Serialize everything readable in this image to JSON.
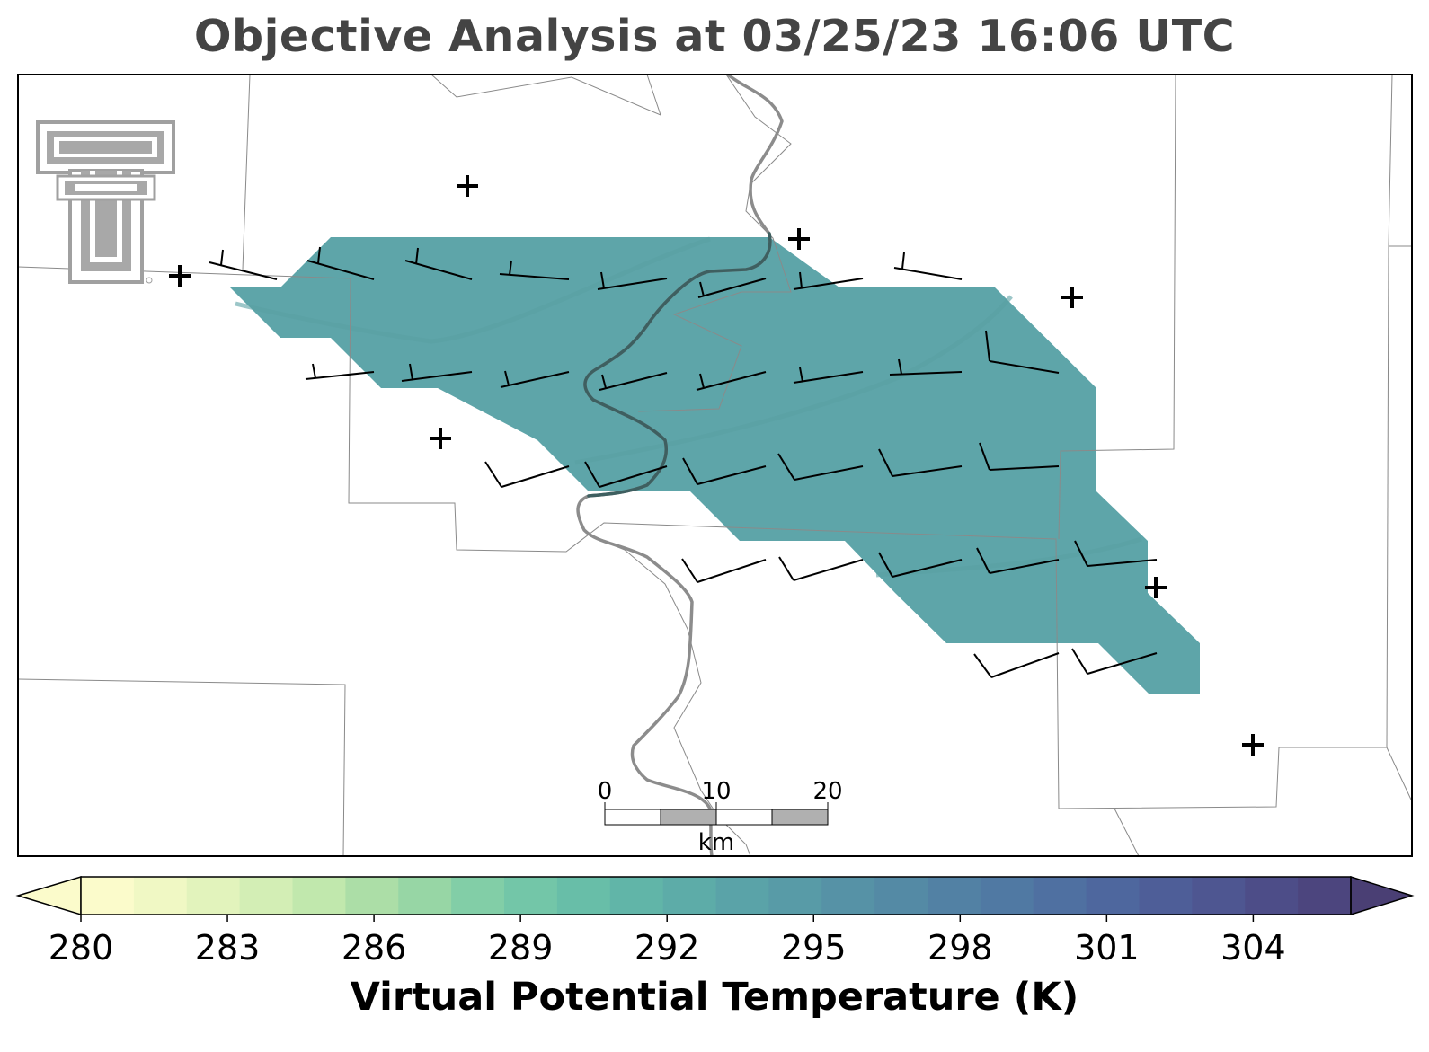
{
  "title": "Objective Analysis at 03/25/23 16:06 UTC",
  "colorbar": {
    "label": "Virtual Potential Temperature (K)",
    "min": 280,
    "max": 306,
    "step": 1,
    "extend": "both",
    "ticks": [
      "280",
      "283",
      "286",
      "289",
      "292",
      "295",
      "298",
      "301",
      "304"
    ],
    "colors": [
      "#fbfbcb",
      "#f0f8c4",
      "#e2f3bc",
      "#d3eeb5",
      "#c1e8ad",
      "#acdea7",
      "#97d6a5",
      "#82cea7",
      "#73c6a8",
      "#68bea8",
      "#61b5a8",
      "#5daca8",
      "#5aa3a8",
      "#589ba7",
      "#5692a6",
      "#548aa5",
      "#5281a4",
      "#5079a3",
      "#4f70a1",
      "#4e679e",
      "#4e5e98",
      "#4e5691",
      "#4d4d88",
      "#4c457e"
    ],
    "under_color": "#fbfbcb",
    "over_color": "#4a3f74"
  },
  "scale_bar": {
    "labels": [
      "0",
      "10",
      "20"
    ],
    "unit": "km"
  },
  "logo": {
    "name": "Texas Tech Double T"
  },
  "analysis_field": {
    "value_k": 293.3,
    "color": "#5ea5a9"
  },
  "stations": 8,
  "wind_barbs": {
    "units": "kt",
    "note": "all barbs 5-10 kt, westerly to northwesterly"
  }
}
